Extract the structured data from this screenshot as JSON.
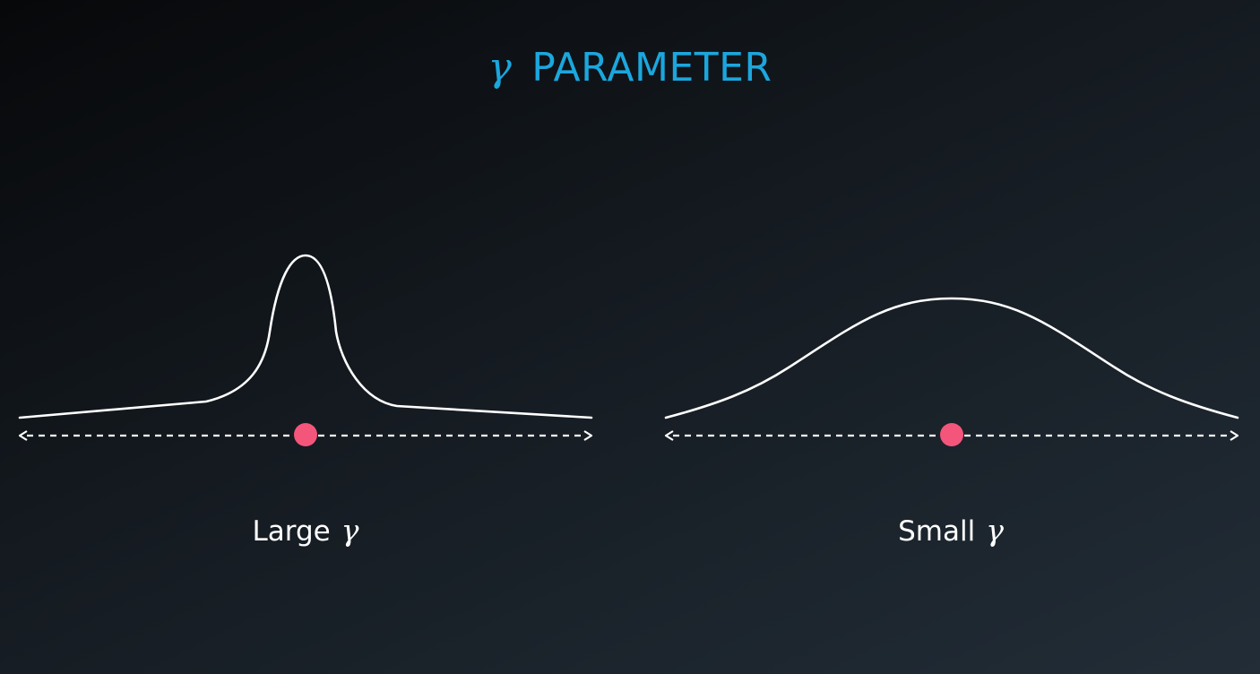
{
  "title": {
    "symbol": "γ",
    "text": "PARAMETER",
    "color": "#1ba7de"
  },
  "panels": [
    {
      "name": "large",
      "label": "Large",
      "symbol": "γ",
      "curve_shape": "narrow-peak"
    },
    {
      "name": "small",
      "label": "Small",
      "symbol": "γ",
      "curve_shape": "wide-bell"
    }
  ],
  "colors": {
    "curve": "#ffffff",
    "axis": "#ffffff",
    "point": "#f4557a",
    "caption": "#ffffff"
  }
}
